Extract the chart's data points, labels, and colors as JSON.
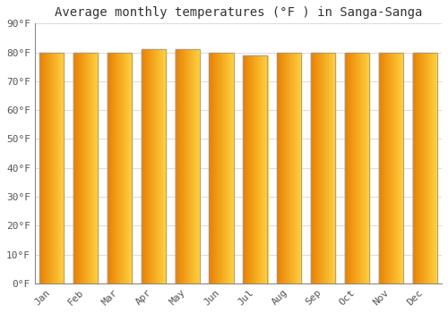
{
  "title": "Average monthly temperatures (°F ) in Sanga-Sanga",
  "months": [
    "Jan",
    "Feb",
    "Mar",
    "Apr",
    "May",
    "Jun",
    "Jul",
    "Aug",
    "Sep",
    "Oct",
    "Nov",
    "Dec"
  ],
  "values": [
    80,
    80,
    80,
    81,
    81,
    80,
    79,
    80,
    80,
    80,
    80,
    80
  ],
  "bar_color_left": "#E88000",
  "bar_color_right": "#FFD040",
  "bar_edge_color": "#999999",
  "background_color": "#FFFFFF",
  "plot_bg_color": "#FFFFFF",
  "grid_color": "#DDDDDD",
  "ylim": [
    0,
    90
  ],
  "yticks": [
    0,
    10,
    20,
    30,
    40,
    50,
    60,
    70,
    80,
    90
  ],
  "ytick_labels": [
    "0°F",
    "10°F",
    "20°F",
    "30°F",
    "40°F",
    "50°F",
    "60°F",
    "70°F",
    "80°F",
    "90°F"
  ],
  "title_fontsize": 10,
  "tick_fontsize": 8,
  "font_family": "monospace",
  "bar_width": 0.72,
  "gradient_steps": 60
}
